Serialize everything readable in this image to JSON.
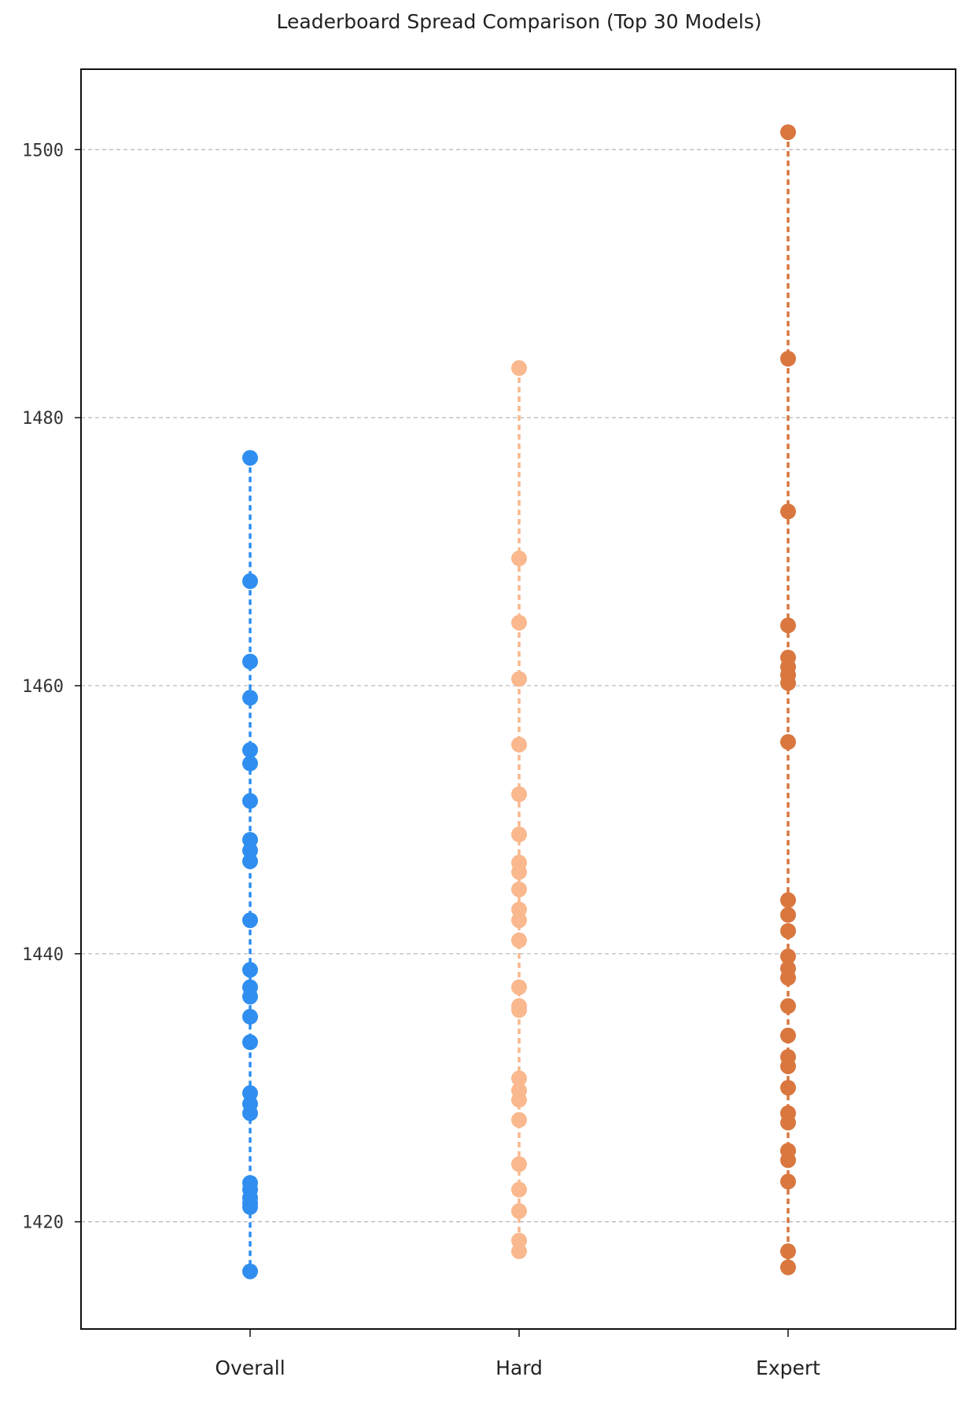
{
  "chart_data": {
    "type": "scatter",
    "title": "Leaderboard Spread Comparison (Top 30 Models)",
    "xlabel": "",
    "ylabel": "",
    "categories": [
      "Overall",
      "Hard",
      "Expert"
    ],
    "ylim": [
      1412,
      1506
    ],
    "yticks": [
      1420,
      1440,
      1460,
      1480,
      1500
    ],
    "grid": "horizontal dashed",
    "connector": "dashed vertical line from min to max in each column",
    "series": [
      {
        "category": "Overall",
        "color": "#2f8ef0",
        "values": [
          1477.0,
          1467.8,
          1461.8,
          1459.1,
          1455.2,
          1454.2,
          1451.4,
          1448.5,
          1447.7,
          1446.9,
          1442.5,
          1438.8,
          1437.5,
          1436.8,
          1435.3,
          1433.4,
          1429.6,
          1428.8,
          1428.1,
          1422.9,
          1422.4,
          1421.8,
          1421.4,
          1421.1,
          1416.3
        ]
      },
      {
        "category": "Hard",
        "color": "#f9b88e",
        "values": [
          1483.7,
          1469.5,
          1464.7,
          1460.5,
          1455.6,
          1451.9,
          1448.9,
          1446.8,
          1446.1,
          1444.8,
          1443.3,
          1442.5,
          1441.0,
          1437.5,
          1436.1,
          1435.8,
          1430.7,
          1429.8,
          1429.1,
          1427.6,
          1424.3,
          1422.4,
          1420.8,
          1418.6,
          1417.8
        ]
      },
      {
        "category": "Expert",
        "color": "#d9773f",
        "values": [
          1501.3,
          1484.4,
          1473.0,
          1464.5,
          1462.1,
          1461.4,
          1460.8,
          1460.2,
          1455.8,
          1444.0,
          1442.9,
          1441.7,
          1439.8,
          1438.9,
          1438.2,
          1436.1,
          1433.9,
          1432.3,
          1431.6,
          1430.0,
          1428.1,
          1427.4,
          1425.3,
          1424.6,
          1423.0,
          1417.8,
          1416.6
        ]
      }
    ]
  }
}
